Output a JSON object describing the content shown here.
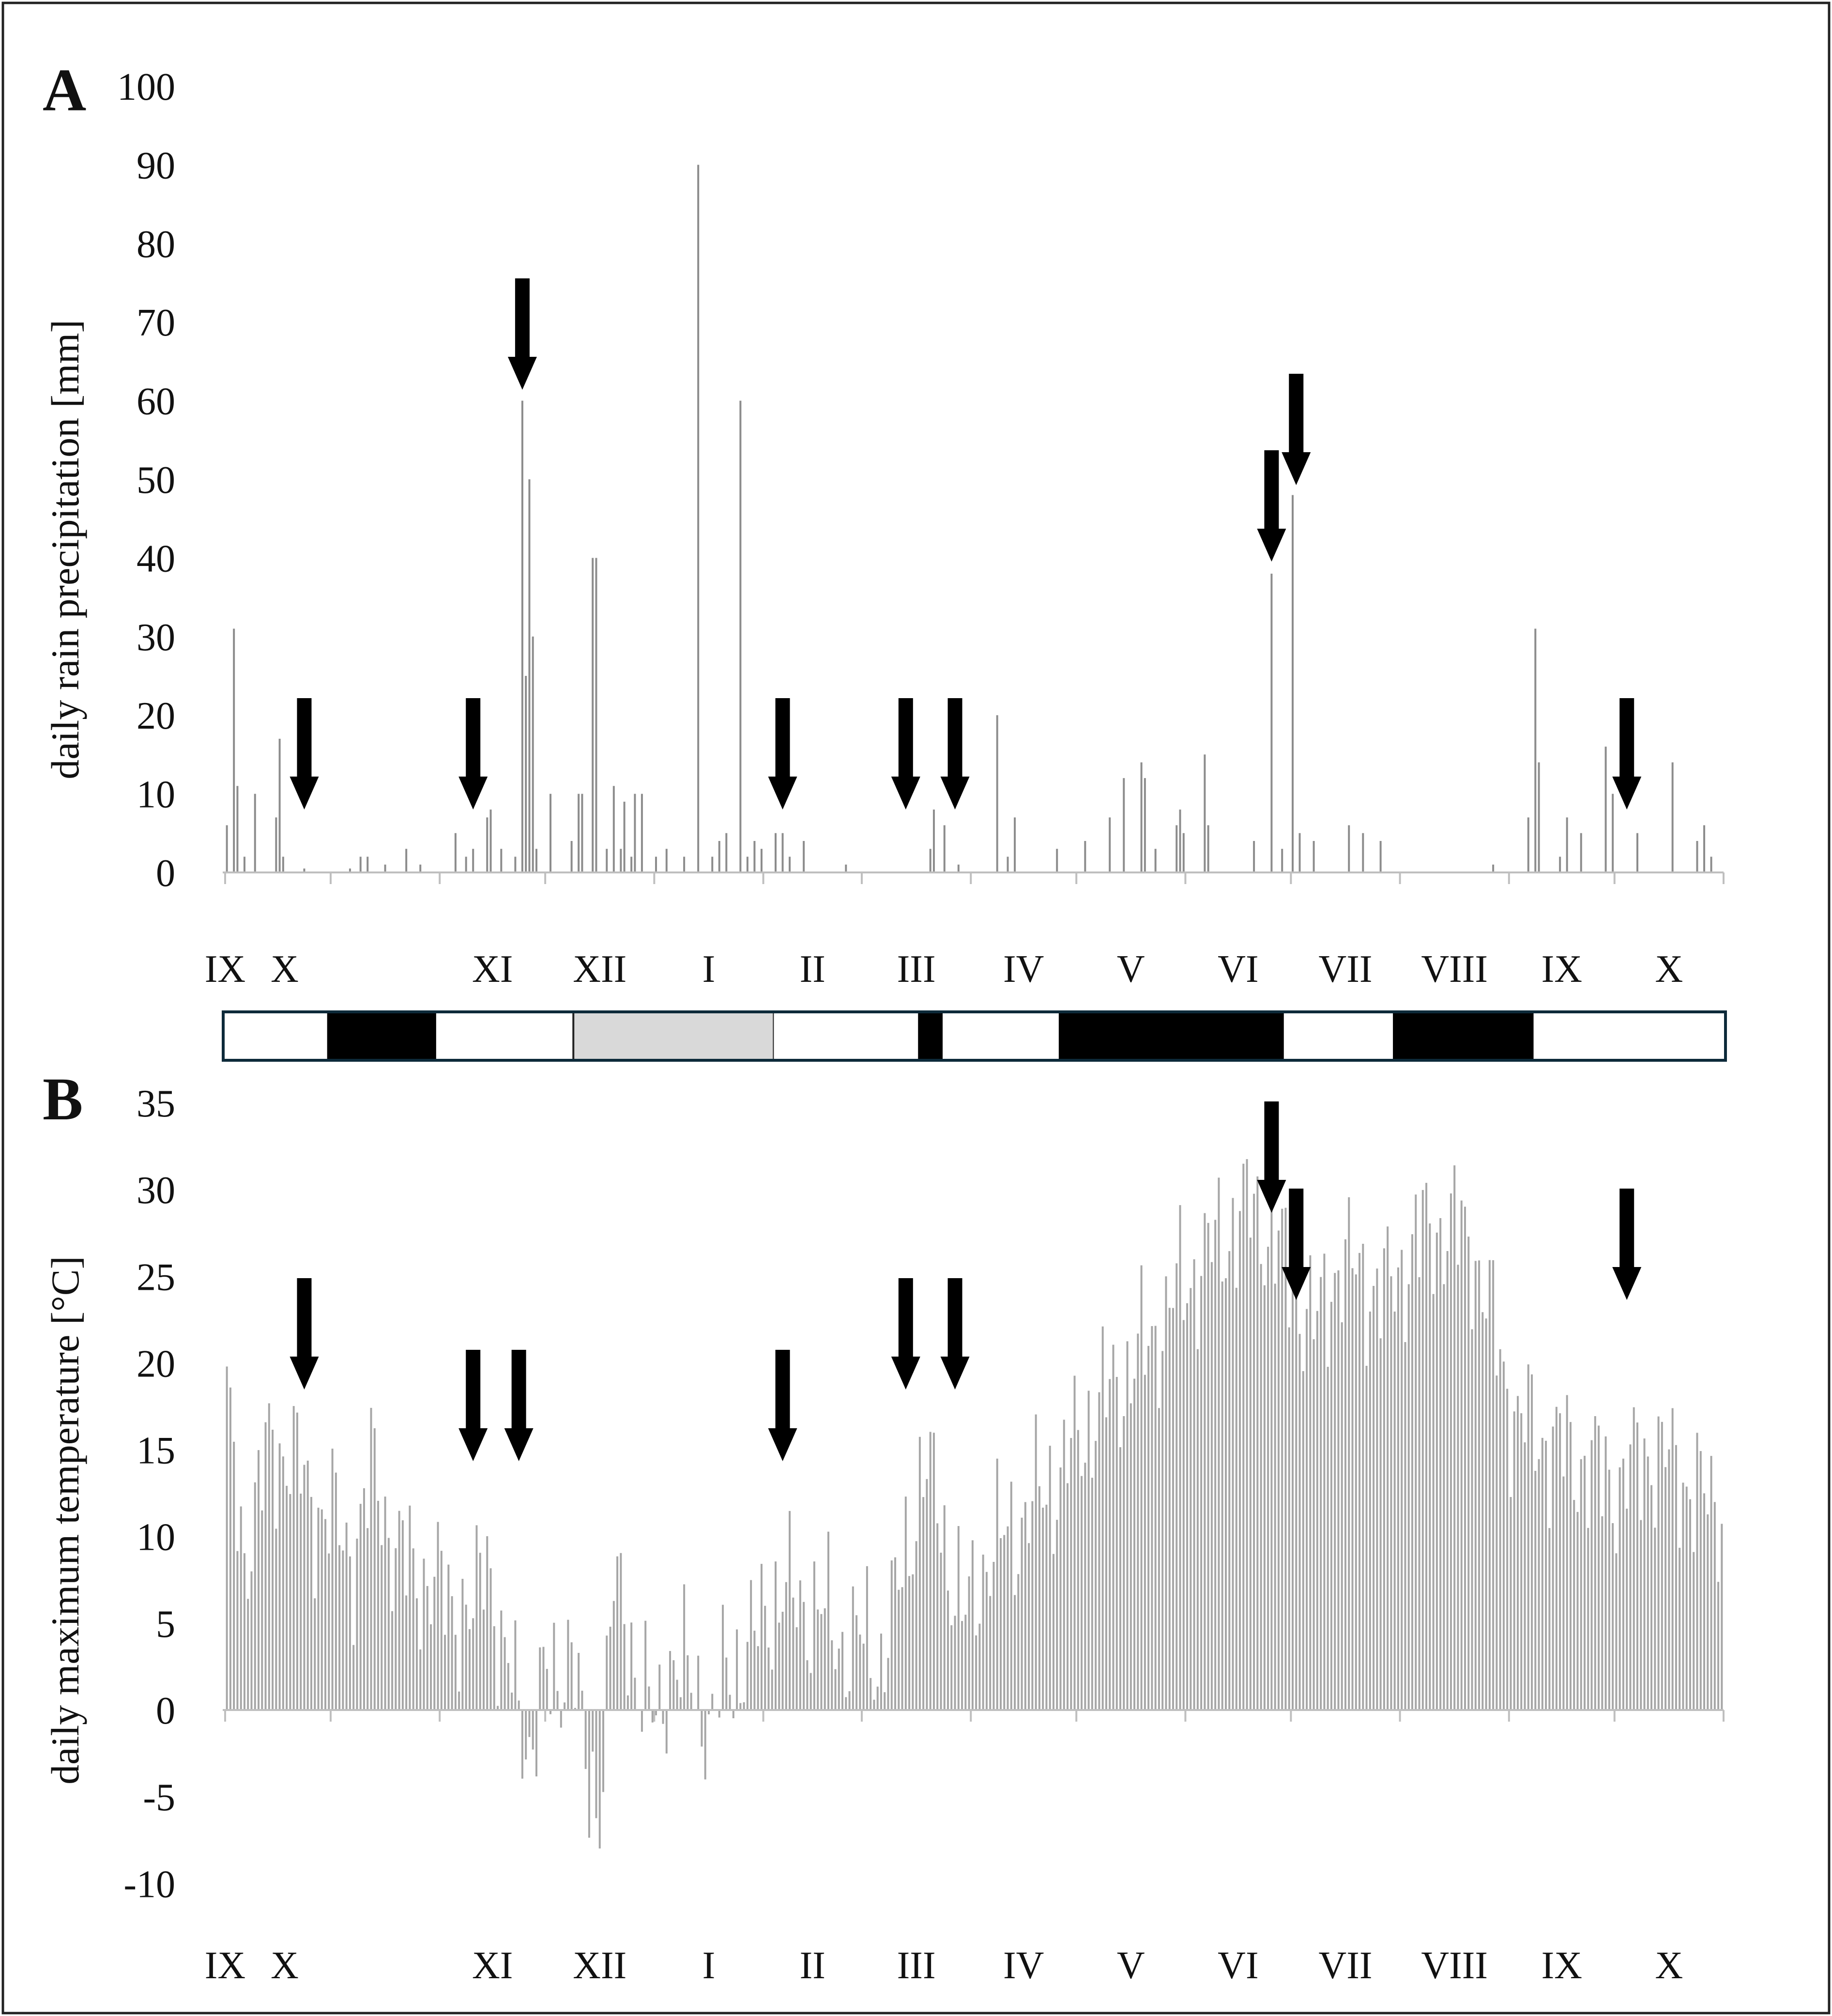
{
  "colors": {
    "bar": "#a6a6a6",
    "rain_bar": "#8c8c8c",
    "arrow": "#000000",
    "strip_black": "#000000",
    "strip_gray": "#d9d9d9",
    "strip_white": "#ffffff",
    "strip_border": "#0d2a3a",
    "axis": "#bfbfbf"
  },
  "panels": {
    "a": {
      "letter": "A"
    },
    "b": {
      "letter": "B"
    }
  },
  "month_labels": [
    "IX",
    "X",
    "XI",
    "XII",
    "I",
    "II",
    "III",
    "IV",
    "V",
    "VI",
    "VII",
    "VIII",
    "IX",
    "X"
  ],
  "chart_data": [
    {
      "type": "bar",
      "panel": "A",
      "ylabel": "daily rain precipitation [mm]",
      "ylim": [
        0,
        100
      ],
      "yticks": [
        0,
        10,
        20,
        30,
        40,
        50,
        60,
        70,
        80,
        90,
        100
      ],
      "x_unit": "day index from start of September (day 0) to end of October of following year",
      "n_days": 426,
      "events": [
        {
          "day": 0,
          "mm": 6
        },
        {
          "day": 2,
          "mm": 31
        },
        {
          "day": 3,
          "mm": 11
        },
        {
          "day": 5,
          "mm": 2
        },
        {
          "day": 8,
          "mm": 10
        },
        {
          "day": 14,
          "mm": 7
        },
        {
          "day": 15,
          "mm": 17
        },
        {
          "day": 16,
          "mm": 2
        },
        {
          "day": 22,
          "mm": 0.5
        },
        {
          "day": 35,
          "mm": 0.5
        },
        {
          "day": 38,
          "mm": 2
        },
        {
          "day": 40,
          "mm": 2
        },
        {
          "day": 45,
          "mm": 1
        },
        {
          "day": 51,
          "mm": 3
        },
        {
          "day": 55,
          "mm": 1
        },
        {
          "day": 65,
          "mm": 5
        },
        {
          "day": 68,
          "mm": 2
        },
        {
          "day": 70,
          "mm": 3
        },
        {
          "day": 74,
          "mm": 7
        },
        {
          "day": 75,
          "mm": 8
        },
        {
          "day": 78,
          "mm": 3
        },
        {
          "day": 82,
          "mm": 2
        },
        {
          "day": 84,
          "mm": 60
        },
        {
          "day": 85,
          "mm": 25
        },
        {
          "day": 86,
          "mm": 50
        },
        {
          "day": 87,
          "mm": 30
        },
        {
          "day": 88,
          "mm": 3
        },
        {
          "day": 92,
          "mm": 10
        },
        {
          "day": 98,
          "mm": 4
        },
        {
          "day": 100,
          "mm": 10
        },
        {
          "day": 101,
          "mm": 10
        },
        {
          "day": 104,
          "mm": 40
        },
        {
          "day": 105,
          "mm": 40
        },
        {
          "day": 108,
          "mm": 3
        },
        {
          "day": 110,
          "mm": 11
        },
        {
          "day": 112,
          "mm": 3
        },
        {
          "day": 113,
          "mm": 9
        },
        {
          "day": 115,
          "mm": 2
        },
        {
          "day": 116,
          "mm": 10
        },
        {
          "day": 118,
          "mm": 10
        },
        {
          "day": 122,
          "mm": 2
        },
        {
          "day": 125,
          "mm": 3
        },
        {
          "day": 130,
          "mm": 2
        },
        {
          "day": 134,
          "mm": 90
        },
        {
          "day": 138,
          "mm": 2
        },
        {
          "day": 140,
          "mm": 4
        },
        {
          "day": 142,
          "mm": 5
        },
        {
          "day": 146,
          "mm": 60
        },
        {
          "day": 148,
          "mm": 2
        },
        {
          "day": 150,
          "mm": 4
        },
        {
          "day": 152,
          "mm": 3
        },
        {
          "day": 156,
          "mm": 5
        },
        {
          "day": 158,
          "mm": 5
        },
        {
          "day": 160,
          "mm": 2
        },
        {
          "day": 164,
          "mm": 4
        },
        {
          "day": 176,
          "mm": 1
        },
        {
          "day": 200,
          "mm": 3
        },
        {
          "day": 201,
          "mm": 8
        },
        {
          "day": 204,
          "mm": 6
        },
        {
          "day": 208,
          "mm": 1
        },
        {
          "day": 219,
          "mm": 20
        },
        {
          "day": 222,
          "mm": 2
        },
        {
          "day": 224,
          "mm": 7
        },
        {
          "day": 236,
          "mm": 3
        },
        {
          "day": 244,
          "mm": 4
        },
        {
          "day": 251,
          "mm": 7
        },
        {
          "day": 255,
          "mm": 12
        },
        {
          "day": 260,
          "mm": 14
        },
        {
          "day": 261,
          "mm": 12
        },
        {
          "day": 264,
          "mm": 3
        },
        {
          "day": 270,
          "mm": 6
        },
        {
          "day": 271,
          "mm": 8
        },
        {
          "day": 272,
          "mm": 5
        },
        {
          "day": 278,
          "mm": 15
        },
        {
          "day": 279,
          "mm": 6
        },
        {
          "day": 292,
          "mm": 4
        },
        {
          "day": 297,
          "mm": 38
        },
        {
          "day": 300,
          "mm": 3
        },
        {
          "day": 303,
          "mm": 48
        },
        {
          "day": 305,
          "mm": 5
        },
        {
          "day": 309,
          "mm": 4
        },
        {
          "day": 319,
          "mm": 6
        },
        {
          "day": 323,
          "mm": 5
        },
        {
          "day": 328,
          "mm": 4
        },
        {
          "day": 360,
          "mm": 1
        },
        {
          "day": 370,
          "mm": 7
        },
        {
          "day": 372,
          "mm": 31
        },
        {
          "day": 373,
          "mm": 14
        },
        {
          "day": 379,
          "mm": 2
        },
        {
          "day": 381,
          "mm": 7
        },
        {
          "day": 385,
          "mm": 5
        },
        {
          "day": 392,
          "mm": 16
        },
        {
          "day": 394,
          "mm": 10
        },
        {
          "day": 401,
          "mm": 5
        },
        {
          "day": 411,
          "mm": 14
        },
        {
          "day": 418,
          "mm": 4
        },
        {
          "day": 420,
          "mm": 6
        },
        {
          "day": 422,
          "mm": 2
        }
      ],
      "arrows_at_day": [
        22,
        70,
        158,
        193,
        207,
        297,
        304,
        398
      ]
    },
    {
      "type": "bar",
      "panel": "B",
      "ylabel": "daily maximum temperature [°C]",
      "ylim": [
        -10,
        35
      ],
      "yticks": [
        -10,
        -5,
        0,
        5,
        10,
        15,
        20,
        25,
        30,
        35
      ],
      "x_unit": "day index from start of September (day 0) to end of October of following year",
      "n_days": 426,
      "curve_day": [
        0,
        5,
        12,
        18,
        24,
        30,
        36,
        42,
        48,
        54,
        60,
        66,
        70,
        74,
        78,
        82,
        86,
        90,
        94,
        98,
        102,
        106,
        110,
        114,
        118,
        122,
        126,
        130,
        134,
        138,
        142,
        146,
        150,
        154,
        158,
        162,
        168,
        174,
        180,
        186,
        190,
        194,
        198,
        202,
        206,
        210,
        216,
        222,
        230,
        238,
        246,
        254,
        262,
        270,
        278,
        286,
        292,
        298,
        304,
        310,
        316,
        322,
        330,
        338,
        346,
        354,
        360,
        366,
        372,
        380,
        388,
        396,
        404,
        412,
        420,
        425
      ],
      "curve_temp": [
        17,
        9,
        15,
        15,
        12,
        11,
        9,
        14,
        9,
        8,
        7,
        6,
        5,
        10,
        3,
        1,
        -2,
        1,
        2,
        4,
        -4,
        -5,
        7,
        5,
        1,
        -1,
        3,
        2,
        1,
        -1,
        2,
        3,
        4,
        6,
        7,
        6,
        6,
        4,
        4,
        3,
        6,
        10,
        14,
        12,
        8,
        5,
        9,
        10,
        12,
        14,
        17,
        19,
        21,
        24,
        26,
        28,
        29,
        27,
        24,
        22,
        26,
        25,
        24,
        27,
        28,
        27,
        22,
        17,
        16,
        15,
        14,
        13,
        15,
        14,
        12,
        12
      ],
      "arrows_at_day": [
        22,
        70,
        83,
        158,
        193,
        207,
        297,
        304,
        398
      ]
    }
  ],
  "season_strip": [
    {
      "from_day": 0,
      "to_day": 29,
      "fill": "white"
    },
    {
      "from_day": 29,
      "to_day": 60,
      "fill": "black"
    },
    {
      "from_day": 60,
      "to_day": 99,
      "fill": "white"
    },
    {
      "from_day": 99,
      "to_day": 156,
      "fill": "gray"
    },
    {
      "from_day": 156,
      "to_day": 197,
      "fill": "white"
    },
    {
      "from_day": 197,
      "to_day": 204,
      "fill": "black"
    },
    {
      "from_day": 204,
      "to_day": 237,
      "fill": "white"
    },
    {
      "from_day": 237,
      "to_day": 301,
      "fill": "black"
    },
    {
      "from_day": 301,
      "to_day": 332,
      "fill": "white"
    },
    {
      "from_day": 332,
      "to_day": 372,
      "fill": "black"
    },
    {
      "from_day": 372,
      "to_day": 426,
      "fill": "white"
    }
  ]
}
